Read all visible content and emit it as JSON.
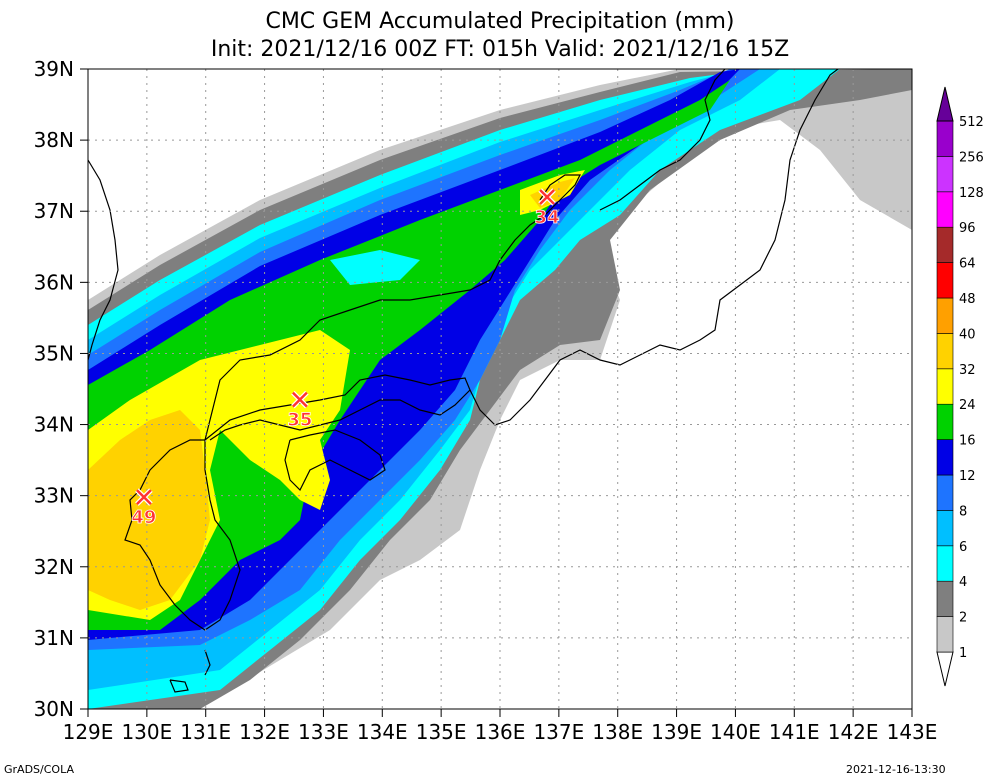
{
  "title_line1": "CMC GEM Accumulated Precipitation (mm)",
  "title_line2": "Init: 2021/12/16 00Z  FT: 015h  Valid: 2021/12/16 15Z",
  "lat_labels": [
    "30N",
    "31N",
    "32N",
    "33N",
    "34N",
    "35N",
    "36N",
    "37N",
    "38N",
    "39N"
  ],
  "lon_labels": [
    "129E",
    "130E",
    "131E",
    "132E",
    "133E",
    "134E",
    "135E",
    "136E",
    "137E",
    "138E",
    "139E",
    "140E",
    "141E",
    "142E",
    "143E"
  ],
  "legend": [
    {
      "label": "1",
      "color": "#c8c8c8"
    },
    {
      "label": "2",
      "color": "#7f7f7f"
    },
    {
      "label": "4",
      "color": "#00ffff"
    },
    {
      "label": "6",
      "color": "#00bfff"
    },
    {
      "label": "8",
      "color": "#1e74ff"
    },
    {
      "label": "12",
      "color": "#0000e6"
    },
    {
      "label": "16",
      "color": "#00d200"
    },
    {
      "label": "24",
      "color": "#ffff00"
    },
    {
      "label": "32",
      "color": "#ffd200"
    },
    {
      "label": "40",
      "color": "#ffa000"
    },
    {
      "label": "48",
      "color": "#ff0000"
    },
    {
      "label": "64",
      "color": "#a52a2a"
    },
    {
      "label": "96",
      "color": "#ff00ff"
    },
    {
      "label": "128",
      "color": "#cc33ff"
    },
    {
      "label": "256",
      "color": "#9900cc"
    },
    {
      "label": "512",
      "color": "#660099"
    }
  ],
  "maxima": [
    {
      "value": "49",
      "lon": 129.95,
      "lat": 32.98
    },
    {
      "value": "35",
      "lon": 132.6,
      "lat": 34.35
    },
    {
      "value": "34",
      "lon": 136.8,
      "lat": 37.2
    }
  ],
  "footer_left": "GrADS/COLA",
  "footer_right": "2021-12-16-13:30"
}
